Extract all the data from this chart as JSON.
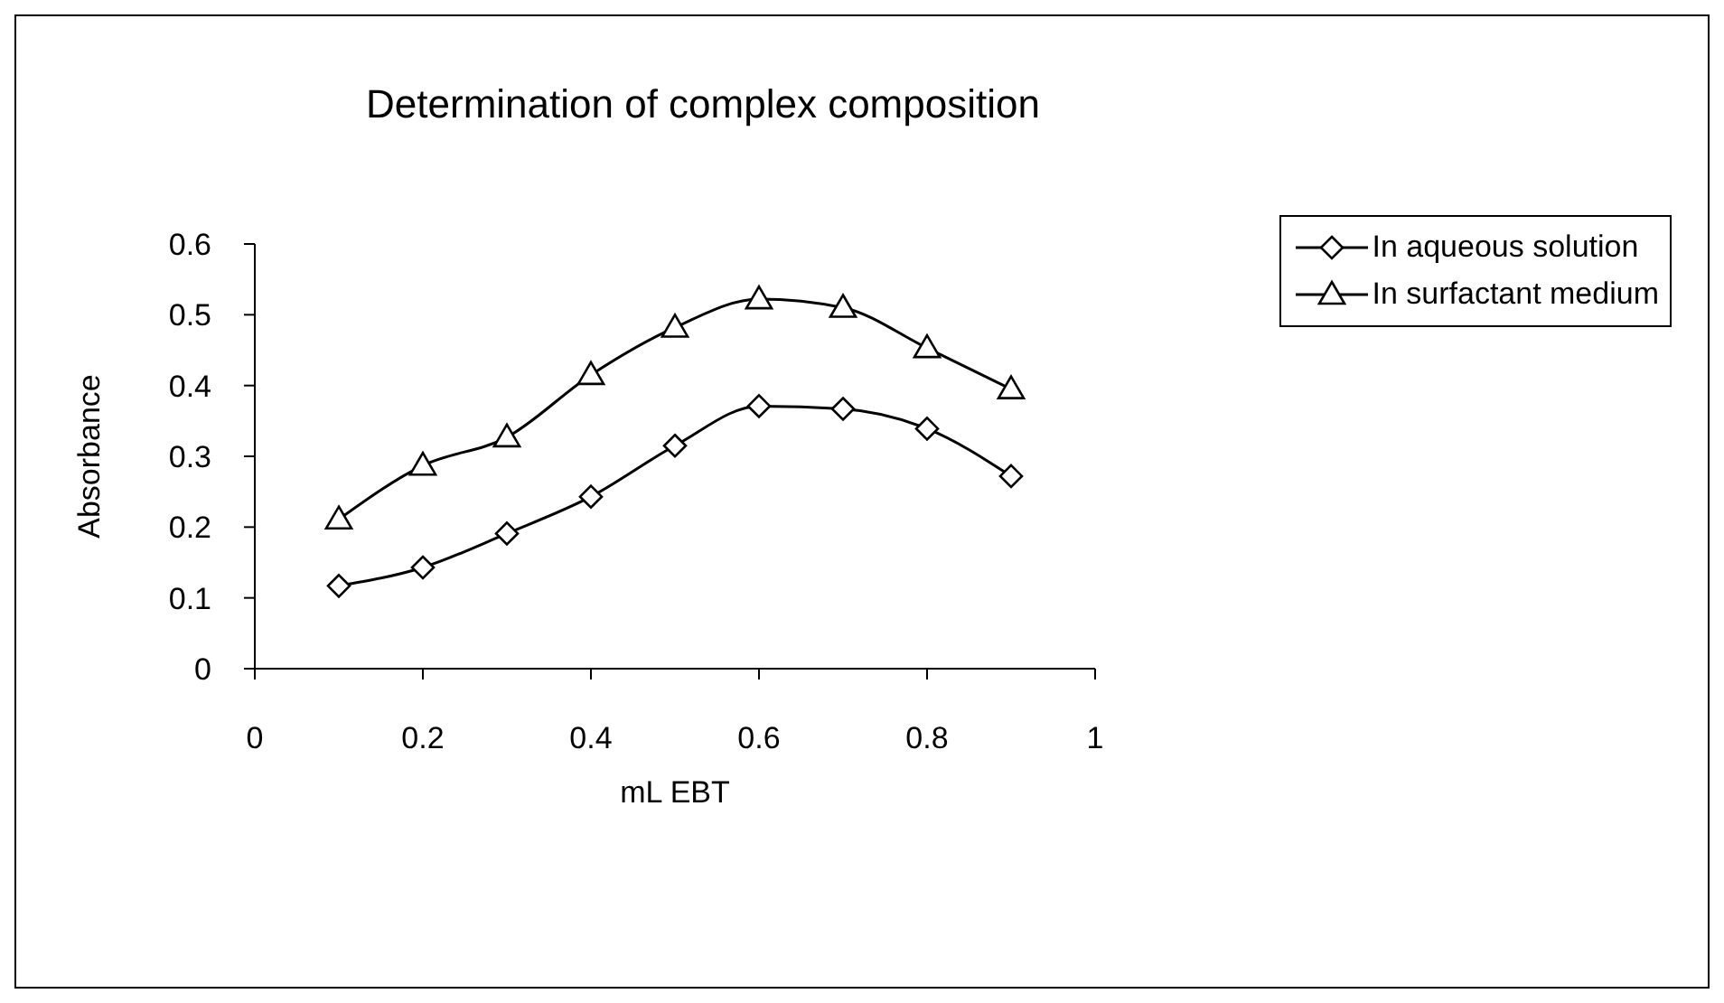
{
  "chart_data": {
    "type": "line",
    "title": "Determination of complex composition",
    "xlabel": "mL EBT",
    "ylabel": "Absorbance",
    "x": [
      0.1,
      0.2,
      0.3,
      0.4,
      0.5,
      0.6,
      0.7,
      0.8,
      0.9
    ],
    "series": [
      {
        "name": "In aqueous solution",
        "color": "#000000",
        "marker": "diamond",
        "values": [
          0.117,
          0.143,
          0.191,
          0.243,
          0.315,
          0.371,
          0.367,
          0.339,
          0.272
        ]
      },
      {
        "name": "In surfactant medium",
        "color": "#000000",
        "marker": "triangle",
        "values": [
          0.211,
          0.287,
          0.327,
          0.415,
          0.482,
          0.522,
          0.51,
          0.453,
          0.395
        ]
      }
    ],
    "xlim": [
      0,
      1
    ],
    "xticks": [
      0,
      0.2,
      0.4,
      0.6,
      0.8,
      1
    ],
    "ylim": [
      0,
      0.6
    ],
    "yticks": [
      0,
      0.1,
      0.2,
      0.3,
      0.4,
      0.5,
      0.6
    ],
    "grid": false,
    "legend": "top right",
    "line_style": "solid"
  }
}
